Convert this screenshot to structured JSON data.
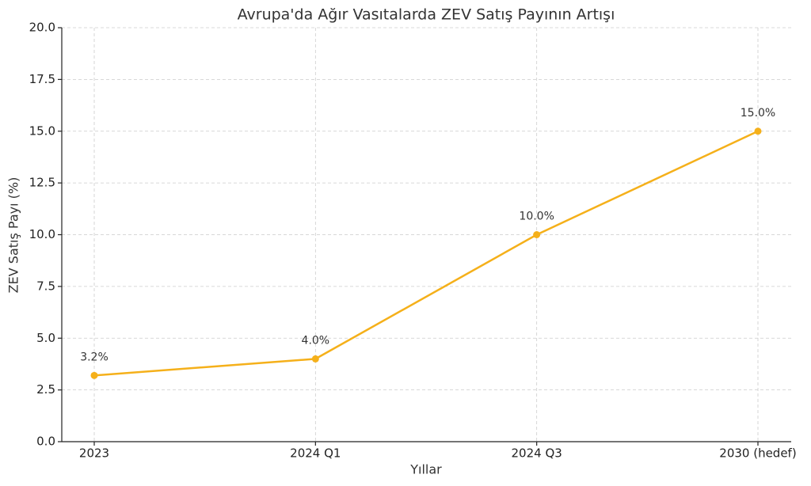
{
  "chart_data": {
    "type": "line",
    "title": "Avrupa'da Ağır Vasıtalarda ZEV Satış Payının Artışı",
    "x_label": "Yıllar",
    "y_label": "ZEV Satış Payı (%)",
    "categories": [
      "2023",
      "2024 Q1",
      "2024 Q3",
      "2030 (hedef)"
    ],
    "values": [
      3.2,
      4.0,
      10.0,
      15.0
    ],
    "value_labels": [
      "3.2%",
      "4.0%",
      "10.0%",
      "15.0%"
    ],
    "color": "#f5b01a",
    "ylim": [
      0,
      20
    ],
    "yticks": [
      {
        "value": 0,
        "label": "0.0"
      },
      {
        "value": 2.5,
        "label": "2.5"
      },
      {
        "value": 5,
        "label": "5.0"
      },
      {
        "value": 7.5,
        "label": "7.5"
      },
      {
        "value": 10,
        "label": "10.0"
      },
      {
        "value": 12.5,
        "label": "12.5"
      },
      {
        "value": 15,
        "label": "15.0"
      },
      {
        "value": 17.5,
        "label": "17.5"
      },
      {
        "value": 20,
        "label": "20.0"
      }
    ],
    "grid": true
  }
}
